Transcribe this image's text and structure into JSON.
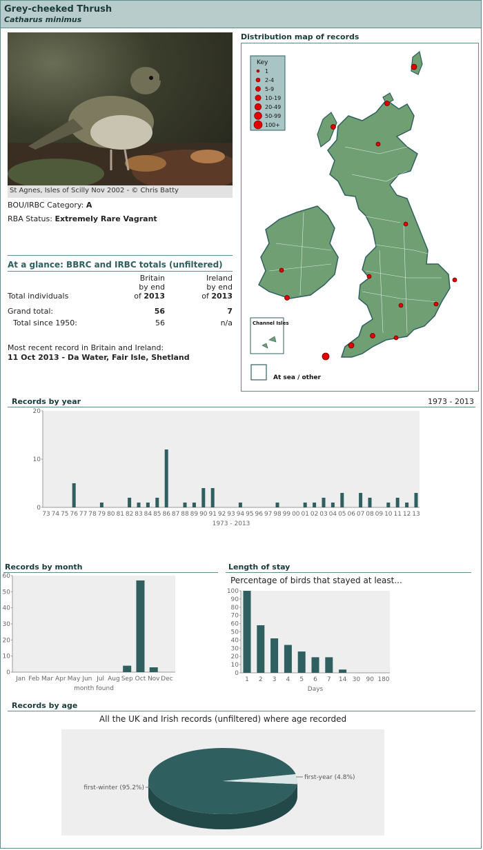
{
  "header": {
    "common_name": "Grey-cheeked Thrush",
    "scientific_name": "Catharus minimus"
  },
  "photo": {
    "caption": "St Agnes, Isles of Scilly Nov 2002 - © Chris Batty"
  },
  "status": {
    "category_label": "BOU/IRBC Category:",
    "category_value": "A",
    "rba_label": "RBA Status:",
    "rba_value": "Extremely Rare Vagrant"
  },
  "glance": {
    "title": "At a glance: BBRC and IRBC totals (unfiltered)",
    "col_britain": [
      "Britain",
      "by end",
      "of"
    ],
    "col_ireland": [
      "Ireland",
      "by end",
      "of"
    ],
    "year": "2013",
    "row_total_individuals": "Total individuals",
    "row_grand": "Grand total:",
    "grand_britain": "56",
    "grand_ireland": "7",
    "row_since": "Total since 1950:",
    "since_britain": "56",
    "since_ireland": "n/a"
  },
  "recent": {
    "label": "Most recent record in Britain and Ireland:",
    "value": "11 Oct 2013  - Da Water, Fair Isle, Shetland"
  },
  "map": {
    "title": "Distribution map of records",
    "key_title": "Key",
    "key_items": [
      "1",
      "2-4",
      "5-9",
      "10-19",
      "20-49",
      "50-99",
      "100+"
    ],
    "channel_isles_label": "Channel Isles",
    "at_sea_label": "At sea / other"
  },
  "colors": {
    "accent": "#5f8a8a",
    "bar": "#2f5f5f",
    "map_land": "#6f9f73",
    "dot": "#e00000",
    "plot_bg": "#eeeeee"
  },
  "chart_data": [
    {
      "type": "bar",
      "title": "Records by year",
      "range_label": "1973 - 2013",
      "xlabel": "1973 - 2013",
      "ylim": [
        0,
        20
      ],
      "yticks": [
        0,
        10,
        20
      ],
      "categories": [
        "73",
        "74",
        "75",
        "76",
        "77",
        "78",
        "79",
        "80",
        "81",
        "82",
        "83",
        "84",
        "85",
        "86",
        "87",
        "88",
        "89",
        "90",
        "91",
        "92",
        "93",
        "94",
        "95",
        "96",
        "97",
        "98",
        "99",
        "00",
        "01",
        "02",
        "03",
        "04",
        "05",
        "06",
        "07",
        "08",
        "09",
        "10",
        "11",
        "12",
        "13"
      ],
      "values": [
        0,
        0,
        0,
        5,
        0,
        0,
        1,
        0,
        0,
        2,
        1,
        1,
        2,
        12,
        0,
        1,
        1,
        4,
        4,
        0,
        0,
        1,
        0,
        0,
        0,
        1,
        0,
        0,
        1,
        1,
        2,
        1,
        3,
        0,
        3,
        2,
        0,
        1,
        2,
        1,
        3
      ]
    },
    {
      "type": "bar",
      "title": "Records by month",
      "xlabel": "month found",
      "ylim": [
        0,
        60
      ],
      "yticks": [
        0,
        10,
        20,
        30,
        40,
        50,
        60
      ],
      "categories": [
        "Jan",
        "Feb",
        "Mar",
        "Apr",
        "May",
        "Jun",
        "Jul",
        "Aug",
        "Sep",
        "Oct",
        "Nov",
        "Dec"
      ],
      "values": [
        0,
        0,
        0,
        0,
        0,
        0,
        0,
        0,
        4,
        57,
        3,
        0
      ]
    },
    {
      "type": "bar",
      "title": "Length of stay",
      "subtitle": "Percentage of birds that stayed at least...",
      "xlabel": "Days",
      "ylim": [
        0,
        100
      ],
      "yticks": [
        0,
        10,
        20,
        30,
        40,
        50,
        60,
        70,
        80,
        90,
        100
      ],
      "categories": [
        "1",
        "2",
        "3",
        "4",
        "5",
        "6",
        "7",
        "14",
        "30",
        "90",
        "180"
      ],
      "values": [
        100,
        58,
        42,
        34,
        26,
        19,
        19,
        4,
        0,
        0,
        0
      ]
    },
    {
      "type": "pie",
      "title": "Records by age",
      "subtitle": "All the UK and Irish records (unfiltered) where age recorded",
      "slices": [
        {
          "label": "first-winter (95.2%)",
          "value": 95.2
        },
        {
          "label": "first-year (4.8%)",
          "value": 4.8
        }
      ]
    }
  ]
}
